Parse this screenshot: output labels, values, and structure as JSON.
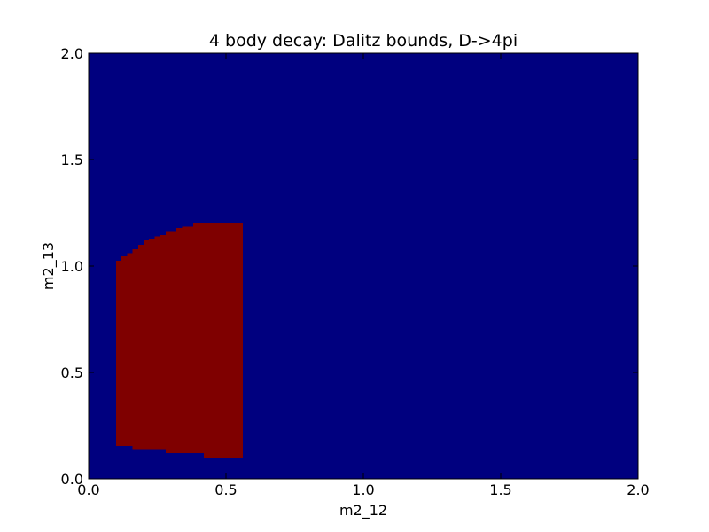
{
  "chart_data": {
    "type": "heatmap",
    "title": "4 body decay: Dalitz bounds, D->4pi",
    "xlabel": "m2_12",
    "ylabel": "m2_13",
    "xlim": [
      0.0,
      2.0
    ],
    "ylim": [
      0.0,
      2.0
    ],
    "x_ticks": [
      0.0,
      0.5,
      1.0,
      1.5,
      2.0
    ],
    "y_ticks": [
      0.0,
      0.5,
      1.0,
      1.5,
      2.0
    ],
    "x_tick_labels": [
      "0.0",
      "0.5",
      "1.0",
      "1.5",
      "2.0"
    ],
    "y_tick_labels": [
      "0.0",
      "0.5",
      "1.0",
      "1.5",
      "2.0"
    ],
    "background_value": 0,
    "background_color": "#00007f",
    "allowed_value": 1,
    "allowed_color": "#7f0000",
    "allowed_region_columns": [
      {
        "x0": 0.1,
        "x1": 0.12,
        "y_low": 0.155,
        "y_high": 1.025
      },
      {
        "x0": 0.12,
        "x1": 0.14,
        "y_low": 0.155,
        "y_high": 1.045
      },
      {
        "x0": 0.14,
        "x1": 0.16,
        "y_low": 0.155,
        "y_high": 1.06
      },
      {
        "x0": 0.16,
        "x1": 0.18,
        "y_low": 0.14,
        "y_high": 1.08
      },
      {
        "x0": 0.18,
        "x1": 0.2,
        "y_low": 0.14,
        "y_high": 1.1
      },
      {
        "x0": 0.2,
        "x1": 0.22,
        "y_low": 0.14,
        "y_high": 1.12
      },
      {
        "x0": 0.22,
        "x1": 0.24,
        "y_low": 0.14,
        "y_high": 1.125
      },
      {
        "x0": 0.24,
        "x1": 0.26,
        "y_low": 0.14,
        "y_high": 1.14
      },
      {
        "x0": 0.26,
        "x1": 0.28,
        "y_low": 0.14,
        "y_high": 1.145
      },
      {
        "x0": 0.28,
        "x1": 0.32,
        "y_low": 0.12,
        "y_high": 1.16
      },
      {
        "x0": 0.32,
        "x1": 0.34,
        "y_low": 0.12,
        "y_high": 1.18
      },
      {
        "x0": 0.34,
        "x1": 0.38,
        "y_low": 0.12,
        "y_high": 1.185
      },
      {
        "x0": 0.38,
        "x1": 0.42,
        "y_low": 0.12,
        "y_high": 1.2
      },
      {
        "x0": 0.42,
        "x1": 0.56,
        "y_low": 0.1,
        "y_high": 1.205
      }
    ]
  }
}
